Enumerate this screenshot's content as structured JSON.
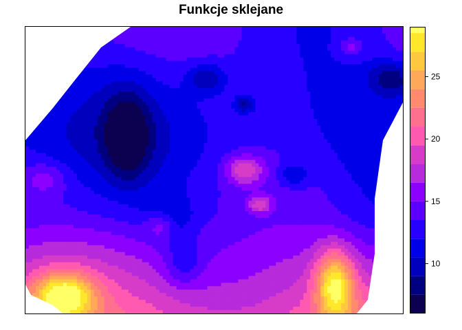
{
  "chart_data": {
    "type": "heatmap",
    "title": "Funkcje sklejane",
    "xlabel": "",
    "ylabel": "",
    "colorbar": {
      "range": [
        6,
        29
      ],
      "levels": [
        6,
        7.5,
        9,
        10.5,
        12,
        13.5,
        15,
        16.5,
        18,
        19.5,
        21,
        22.5,
        24,
        25.5,
        27,
        28.5
      ],
      "colors": [
        "#0c0050",
        "#000080",
        "#0000bd",
        "#0000e8",
        "#2800ff",
        "#5b00ff",
        "#8c00ff",
        "#b72bdc",
        "#d73cc8",
        "#ff59b0",
        "#ff6f8e",
        "#ff8a6e",
        "#ffa85a",
        "#ffc840",
        "#ffe82a",
        "#ffff66"
      ],
      "tick_labels": [
        "10",
        "15",
        "20",
        "25"
      ],
      "tick_values": [
        10,
        15,
        20,
        25
      ]
    },
    "legend_placement": "right",
    "grid": false,
    "features": [
      {
        "kind": "min",
        "x": 0.27,
        "y": 0.62,
        "value": 7.5,
        "sx": 0.06,
        "sy": 0.15
      },
      {
        "kind": "min",
        "x": 0.48,
        "y": 0.82,
        "value": 9.5,
        "sx": 0.05,
        "sy": 0.05
      },
      {
        "kind": "min",
        "x": 0.97,
        "y": 0.82,
        "value": 8.5,
        "sx": 0.06,
        "sy": 0.06
      },
      {
        "kind": "min",
        "x": 0.58,
        "y": 0.73,
        "value": 9.5,
        "sx": 0.025,
        "sy": 0.03
      },
      {
        "kind": "min",
        "x": 0.71,
        "y": 0.48,
        "value": 10.5,
        "sx": 0.04,
        "sy": 0.04
      },
      {
        "kind": "min",
        "x": 0.38,
        "y": 0.33,
        "value": 10.5,
        "sx": 0.06,
        "sy": 0.08
      },
      {
        "kind": "min",
        "x": 0.42,
        "y": 0.17,
        "value": 10.5,
        "sx": 0.05,
        "sy": 0.08
      },
      {
        "kind": "max",
        "x": 0.1,
        "y": 0.06,
        "value": 26.5,
        "sx": 0.08,
        "sy": 0.08
      },
      {
        "kind": "max",
        "x": 0.82,
        "y": 0.1,
        "value": 26,
        "sx": 0.05,
        "sy": 0.12
      },
      {
        "kind": "max",
        "x": 0.58,
        "y": 0.5,
        "value": 20.5,
        "sx": 0.05,
        "sy": 0.05
      },
      {
        "kind": "max",
        "x": 0.62,
        "y": 0.38,
        "value": 19.5,
        "sx": 0.03,
        "sy": 0.03
      },
      {
        "kind": "max",
        "x": 0.05,
        "y": 0.47,
        "value": 17.5,
        "sx": 0.06,
        "sy": 0.06
      },
      {
        "kind": "max",
        "x": 0.36,
        "y": 0.31,
        "value": 18.5,
        "sx": 0.04,
        "sy": 0.05
      },
      {
        "kind": "max",
        "x": 0.86,
        "y": 0.93,
        "value": 17.5,
        "sx": 0.03,
        "sy": 0.03
      }
    ]
  }
}
